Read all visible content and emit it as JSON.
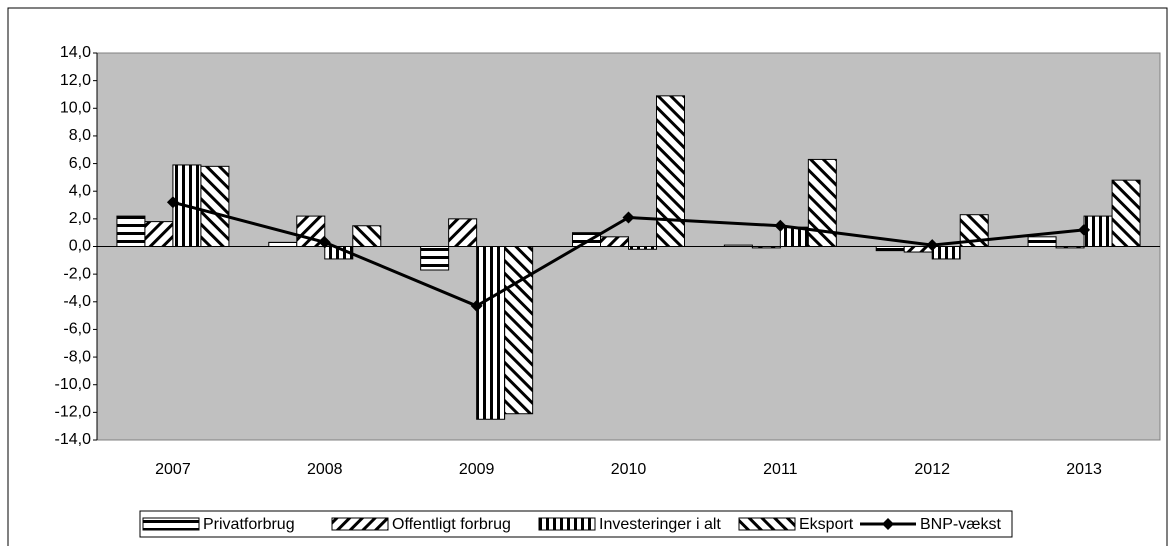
{
  "chart_data": {
    "type": "bar",
    "categories": [
      "2007",
      "2008",
      "2009",
      "2010",
      "2011",
      "2012",
      "2013"
    ],
    "series": [
      {
        "name": "Privatforbrug",
        "color": "#000000",
        "pattern": "horizontal",
        "values": [
          2.2,
          0.3,
          -1.7,
          1.0,
          0.1,
          -0.3,
          0.7
        ]
      },
      {
        "name": "Offentligt forbrug",
        "color": "#000000",
        "pattern": "diagonal-up",
        "values": [
          1.8,
          2.2,
          2.0,
          0.7,
          -0.1,
          -0.4,
          -0.1
        ]
      },
      {
        "name": "Investeringer i alt",
        "color": "#000000",
        "pattern": "vertical",
        "values": [
          5.9,
          -0.9,
          -12.5,
          -0.2,
          1.4,
          -0.9,
          2.2
        ]
      },
      {
        "name": "Eksport",
        "color": "#000000",
        "pattern": "diagonal-down",
        "values": [
          5.8,
          1.5,
          -12.1,
          10.9,
          6.3,
          2.3,
          4.8
        ]
      },
      {
        "name": "BNP-vækst",
        "color": "#000000",
        "type": "line",
        "values": [
          3.2,
          0.3,
          -4.3,
          2.1,
          1.5,
          0.1,
          1.2
        ]
      }
    ],
    "ylim": [
      -14,
      14
    ],
    "yticks": [
      {
        "value": -14,
        "label": "-14,0"
      },
      {
        "value": -12,
        "label": "-12,0"
      },
      {
        "value": -10,
        "label": "-10,0"
      },
      {
        "value": -8,
        "label": "-8,0"
      },
      {
        "value": -6,
        "label": "-6,0"
      },
      {
        "value": -4,
        "label": "-4,0"
      },
      {
        "value": -2,
        "label": "-2,0"
      },
      {
        "value": 0,
        "label": "0,0"
      },
      {
        "value": 2,
        "label": "2,0"
      },
      {
        "value": 4,
        "label": "4,0"
      },
      {
        "value": 6,
        "label": "6,0"
      },
      {
        "value": 8,
        "label": "8,0"
      },
      {
        "value": 10,
        "label": "10,0"
      },
      {
        "value": 12,
        "label": "12,0"
      },
      {
        "value": 14,
        "label": "14,0"
      }
    ],
    "plot_background": "#c0c0c0",
    "legend": "bottom"
  }
}
